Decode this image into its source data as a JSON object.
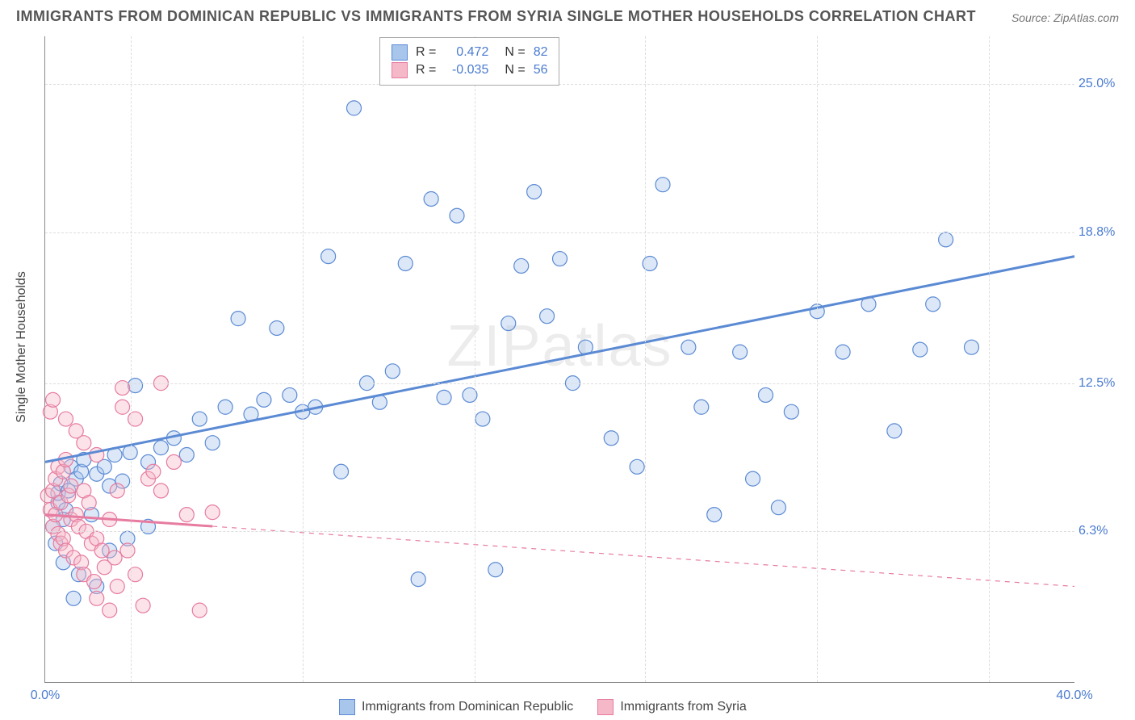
{
  "title": "IMMIGRANTS FROM DOMINICAN REPUBLIC VS IMMIGRANTS FROM SYRIA SINGLE MOTHER HOUSEHOLDS CORRELATION CHART",
  "source": "Source: ZipAtlas.com",
  "watermark": "ZIPatlas",
  "y_axis_title": "Single Mother Households",
  "chart": {
    "type": "scatter",
    "xlim": [
      0,
      40
    ],
    "ylim": [
      0,
      27
    ],
    "x_ticks": [
      0,
      40
    ],
    "x_tick_labels": [
      "0.0%",
      "40.0%"
    ],
    "y_ticks": [
      6.3,
      12.5,
      18.8,
      25.0
    ],
    "y_tick_labels": [
      "6.3%",
      "12.5%",
      "18.8%",
      "25.0%"
    ],
    "grid_v_positions": [
      0.083,
      0.25,
      0.417,
      0.583,
      0.75,
      0.917
    ],
    "grid_color": "#dddddd",
    "background_color": "#ffffff",
    "marker_radius": 9,
    "marker_opacity": 0.4,
    "line_width_solid": 3,
    "line_width_dashed": 1.2
  },
  "series": [
    {
      "name": "Immigrants from Dominican Republic",
      "color_fill": "#a8c5ec",
      "color_stroke": "#5b8ad4",
      "R": "0.472",
      "N": "82",
      "trend": {
        "y_at_x0": 9.2,
        "y_at_x40": 17.8,
        "dashed": false
      },
      "points": [
        [
          0.5,
          7.5
        ],
        [
          0.5,
          7.9
        ],
        [
          0.6,
          8.3
        ],
        [
          0.7,
          6.8
        ],
        [
          0.8,
          7.2
        ],
        [
          0.9,
          8.0
        ],
        [
          1.0,
          9.0
        ],
        [
          1.2,
          8.5
        ],
        [
          1.4,
          8.8
        ],
        [
          1.5,
          9.3
        ],
        [
          2.0,
          8.7
        ],
        [
          2.3,
          9.0
        ],
        [
          2.5,
          8.2
        ],
        [
          2.7,
          9.5
        ],
        [
          3.0,
          8.4
        ],
        [
          3.3,
          9.6
        ],
        [
          3.5,
          12.4
        ],
        [
          4.0,
          9.2
        ],
        [
          4.5,
          9.8
        ],
        [
          5.0,
          10.2
        ],
        [
          5.5,
          9.5
        ],
        [
          6.0,
          11.0
        ],
        [
          6.5,
          10.0
        ],
        [
          7.0,
          11.5
        ],
        [
          7.5,
          15.2
        ],
        [
          8.0,
          11.2
        ],
        [
          8.5,
          11.8
        ],
        [
          9.0,
          14.8
        ],
        [
          9.5,
          12.0
        ],
        [
          10.0,
          11.3
        ],
        [
          10.5,
          11.5
        ],
        [
          11.0,
          17.8
        ],
        [
          11.5,
          8.8
        ],
        [
          12.0,
          24.0
        ],
        [
          12.5,
          12.5
        ],
        [
          13.0,
          11.7
        ],
        [
          13.5,
          13.0
        ],
        [
          14.0,
          17.5
        ],
        [
          14.5,
          4.3
        ],
        [
          15.0,
          20.2
        ],
        [
          15.5,
          11.9
        ],
        [
          16.0,
          19.5
        ],
        [
          16.5,
          12.0
        ],
        [
          17.0,
          11.0
        ],
        [
          17.5,
          4.7
        ],
        [
          18.0,
          15.0
        ],
        [
          18.5,
          17.4
        ],
        [
          19.0,
          20.5
        ],
        [
          19.5,
          15.3
        ],
        [
          20.0,
          17.7
        ],
        [
          20.5,
          12.5
        ],
        [
          21.0,
          14.0
        ],
        [
          22.0,
          10.2
        ],
        [
          23.0,
          9.0
        ],
        [
          23.5,
          17.5
        ],
        [
          24.0,
          20.8
        ],
        [
          25.0,
          14.0
        ],
        [
          25.5,
          11.5
        ],
        [
          26.0,
          7.0
        ],
        [
          27.0,
          13.8
        ],
        [
          27.5,
          8.5
        ],
        [
          28.0,
          12.0
        ],
        [
          28.5,
          7.3
        ],
        [
          29.0,
          11.3
        ],
        [
          30.0,
          15.5
        ],
        [
          31.0,
          13.8
        ],
        [
          32.0,
          15.8
        ],
        [
          33.0,
          10.5
        ],
        [
          34.0,
          13.9
        ],
        [
          34.5,
          15.8
        ],
        [
          35.0,
          18.5
        ],
        [
          36.0,
          14.0
        ],
        [
          1.1,
          3.5
        ],
        [
          2.0,
          4.0
        ],
        [
          2.5,
          5.5
        ],
        [
          3.2,
          6.0
        ],
        [
          4.0,
          6.5
        ],
        [
          1.8,
          7.0
        ],
        [
          0.3,
          6.5
        ],
        [
          0.4,
          5.8
        ],
        [
          0.7,
          5.0
        ],
        [
          1.3,
          4.5
        ]
      ]
    },
    {
      "name": "Immigrants from Syria",
      "color_fill": "#f5b8c8",
      "color_stroke": "#e77ba0",
      "R": "-0.035",
      "N": "56",
      "trend": {
        "y_at_x0": 7.0,
        "y_at_x40": 4.0,
        "dashed": true,
        "solid_until_x": 6.5
      },
      "points": [
        [
          0.1,
          7.8
        ],
        [
          0.2,
          7.2
        ],
        [
          0.3,
          8.0
        ],
        [
          0.3,
          6.5
        ],
        [
          0.4,
          8.5
        ],
        [
          0.4,
          7.0
        ],
        [
          0.5,
          9.0
        ],
        [
          0.5,
          6.2
        ],
        [
          0.6,
          7.5
        ],
        [
          0.6,
          5.8
        ],
        [
          0.7,
          8.8
        ],
        [
          0.7,
          6.0
        ],
        [
          0.8,
          9.3
        ],
        [
          0.8,
          5.5
        ],
        [
          0.9,
          7.8
        ],
        [
          1.0,
          6.8
        ],
        [
          1.0,
          8.2
        ],
        [
          1.1,
          5.2
        ],
        [
          1.2,
          7.0
        ],
        [
          1.3,
          6.5
        ],
        [
          1.4,
          5.0
        ],
        [
          1.5,
          8.0
        ],
        [
          1.5,
          4.5
        ],
        [
          1.6,
          6.3
        ],
        [
          1.7,
          7.5
        ],
        [
          1.8,
          5.8
        ],
        [
          1.9,
          4.2
        ],
        [
          2.0,
          6.0
        ],
        [
          2.0,
          3.5
        ],
        [
          2.2,
          5.5
        ],
        [
          2.3,
          4.8
        ],
        [
          2.5,
          6.8
        ],
        [
          2.5,
          3.0
        ],
        [
          2.7,
          5.2
        ],
        [
          2.8,
          4.0
        ],
        [
          3.0,
          11.5
        ],
        [
          3.0,
          12.3
        ],
        [
          3.2,
          5.5
        ],
        [
          3.5,
          4.5
        ],
        [
          3.5,
          11.0
        ],
        [
          3.8,
          3.2
        ],
        [
          4.0,
          8.5
        ],
        [
          4.2,
          8.8
        ],
        [
          4.5,
          8.0
        ],
        [
          4.5,
          12.5
        ],
        [
          5.0,
          9.2
        ],
        [
          5.5,
          7.0
        ],
        [
          6.0,
          3.0
        ],
        [
          6.5,
          7.1
        ],
        [
          0.2,
          11.3
        ],
        [
          0.3,
          11.8
        ],
        [
          0.8,
          11.0
        ],
        [
          1.2,
          10.5
        ],
        [
          1.5,
          10.0
        ],
        [
          2.0,
          9.5
        ],
        [
          2.8,
          8.0
        ]
      ]
    }
  ],
  "legend_top": {
    "r_label": "R =",
    "n_label": "N ="
  },
  "colors": {
    "title": "#555555",
    "axis_label": "#4a7bd0",
    "text": "#444444"
  }
}
